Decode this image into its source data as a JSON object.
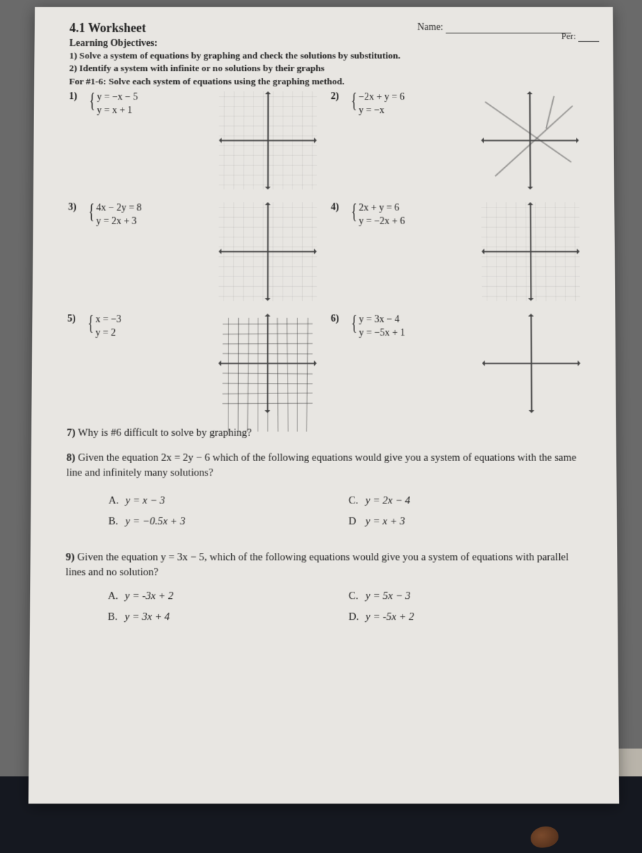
{
  "header": {
    "title": "4.1 Worksheet",
    "name_label": "Name:",
    "per_label": "Per:",
    "objectives_heading": "Learning Objectives:",
    "objective1": "1) Solve a system of equations by graphing and check the solutions by substitution.",
    "objective2": "2) Identify a system with infinite or no solutions by their graphs",
    "instructions": "For #1-6: Solve each system of equations using the graphing method."
  },
  "problems": [
    {
      "num": "1)",
      "eq1": "y = −x − 5",
      "eq2": "y = x + 1",
      "grid": true,
      "hand": false,
      "pencil": false
    },
    {
      "num": "2)",
      "eq1": "−2x + y = 6",
      "eq2": "y = −x",
      "grid": false,
      "hand": false,
      "pencil": true
    },
    {
      "num": "3)",
      "eq1": "4x − 2y = 8",
      "eq2": "y = 2x + 3",
      "grid": true,
      "hand": false,
      "pencil": false
    },
    {
      "num": "4)",
      "eq1": "2x + y = 6",
      "eq2": "y = −2x + 6",
      "grid": true,
      "hand": false,
      "pencil": false
    },
    {
      "num": "5)",
      "eq1": "x = −3",
      "eq2": "y = 2",
      "grid": false,
      "hand": true,
      "pencil": false
    },
    {
      "num": "6)",
      "eq1": "y = 3x − 4",
      "eq2": "y = −5x + 1",
      "grid": false,
      "hand": false,
      "pencil": false
    }
  ],
  "q7": {
    "num": "7)",
    "text": "Why is #6 difficult to solve by graphing?"
  },
  "q8": {
    "num": "8)",
    "text": "Given the equation  2x = 2y − 6  which of the following equations would give you a system of equations with the same line and infinitely many solutions?",
    "choices": {
      "A": "y = x − 3",
      "B": "y = −0.5x + 3",
      "C": "y = 2x − 4",
      "D": "y = x + 3"
    },
    "labels": {
      "A": "A.",
      "B": "B.",
      "C": "C.",
      "D": "D"
    }
  },
  "q9": {
    "num": "9)",
    "text": "Given the equation  y = 3x − 5, which of the following equations would give you a system of equations with parallel lines and no solution?",
    "choices": {
      "A": "y = -3x + 2",
      "B": "y = 3x + 4",
      "C": "y = 5x − 3",
      "D": "y = -5x + 2"
    },
    "labels": {
      "A": "A.",
      "B": "B.",
      "C": "C.",
      "D": "D."
    }
  },
  "style": {
    "page_bg": "#e8e6e2",
    "text_color": "#222",
    "axis_color": "#444",
    "pencil_color": "rgba(60,60,60,.45)"
  }
}
